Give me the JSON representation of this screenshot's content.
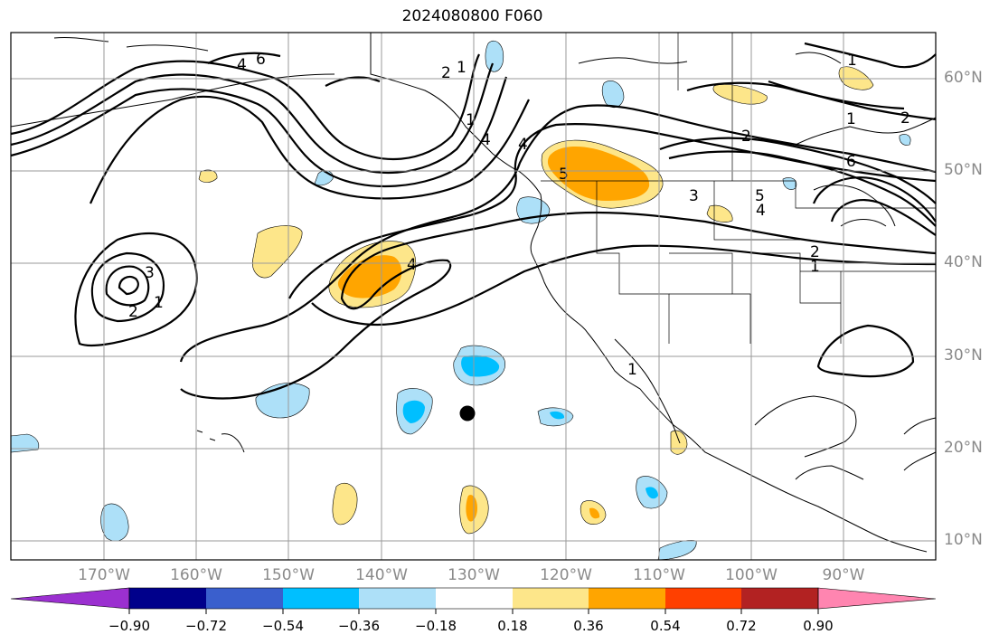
{
  "title": "2024080800 F060",
  "lat_labels": [
    "60°N",
    "50°N",
    "40°N",
    "30°N",
    "20°N",
    "10°N"
  ],
  "lon_labels": [
    "170°W",
    "160°W",
    "150°W",
    "140°W",
    "130°W",
    "120°W",
    "110°W",
    "100°W",
    "90°W"
  ],
  "colorbar": {
    "ticks": [
      "−0.90",
      "−0.72",
      "−0.54",
      "−0.36",
      "−0.18",
      "0.18",
      "0.36",
      "0.54",
      "0.72",
      "0.90"
    ],
    "colors": [
      "#9b30d0",
      "#00008b",
      "#3a5fcd",
      "#00bfff",
      "#ade0f8",
      "#ffffff",
      "#fde68a",
      "#ffa500",
      "#ff4000",
      "#b22222",
      "#ff85b0"
    ]
  },
  "contour_labels": [
    "6",
    "4",
    "2",
    "1",
    "2",
    "1",
    "1",
    "4",
    "5",
    "1",
    "2",
    "6",
    "3",
    "5",
    "4",
    "2",
    "1",
    "4",
    "3",
    "2",
    "1",
    "4",
    "1"
  ],
  "contour_color": "#000000",
  "shading": {
    "positive_light": "#fde68a",
    "positive_mid": "#ffa500",
    "negative_light": "#ade0f8",
    "negative_mid": "#00bfff"
  },
  "marker": "tropical-cyclone-center-dot"
}
